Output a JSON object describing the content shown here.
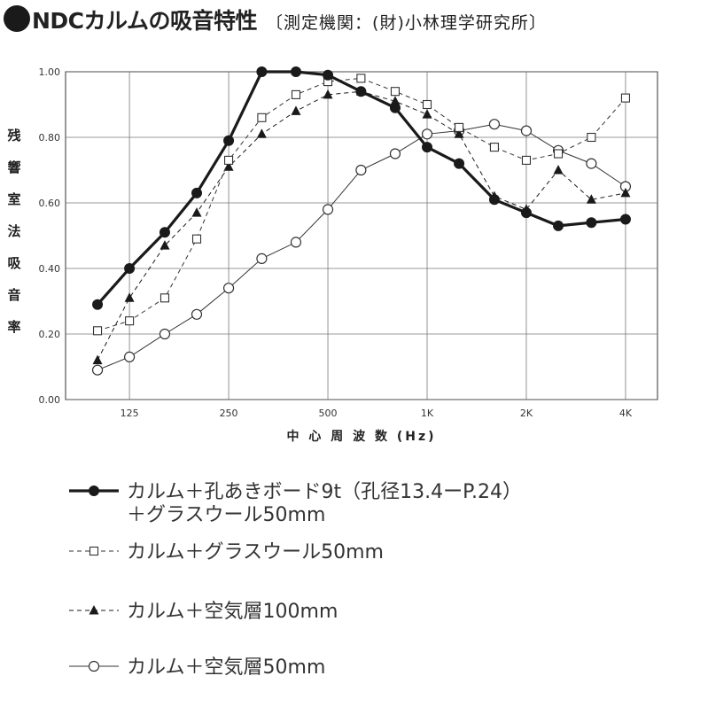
{
  "title": {
    "main": "NDCカルムの吸音特性",
    "sub": "〔測定機関：(財)小林理学研究所〕"
  },
  "chart_data": {
    "type": "line",
    "xlabel": "中 心 周 波 数 (Hz)",
    "ylabel": "残響室法吸音率",
    "x": [
      100,
      125,
      160,
      200,
      250,
      315,
      400,
      500,
      630,
      800,
      1000,
      1250,
      1600,
      2000,
      2500,
      3150,
      4000
    ],
    "x_ticks": [
      {
        "value": 125,
        "label": "125"
      },
      {
        "value": 250,
        "label": "250"
      },
      {
        "value": 500,
        "label": "500"
      },
      {
        "value": 1000,
        "label": "1K"
      },
      {
        "value": 2000,
        "label": "2K"
      },
      {
        "value": 4000,
        "label": "4K"
      }
    ],
    "x_scale": "log",
    "xlim": [
      80,
      5000
    ],
    "ylim": [
      0,
      1.0
    ],
    "y_ticks": [
      "0.00",
      "0.20",
      "0.40",
      "0.60",
      "0.80",
      "1.00"
    ],
    "grid": true,
    "series": [
      {
        "name": "カルム＋孔あきボード9t（孔径13.4ーP.24）＋グラスウール50mm",
        "marker": "filled-circle",
        "style": "solid-thick",
        "color": "#1a1a1a",
        "values": [
          0.29,
          0.4,
          0.51,
          0.63,
          0.79,
          1.0,
          1.0,
          0.99,
          0.94,
          0.89,
          0.77,
          0.72,
          0.61,
          0.57,
          0.53,
          0.54,
          0.55
        ]
      },
      {
        "name": "カルム＋グラスウール50mm",
        "marker": "open-square",
        "style": "dashed",
        "color": "#333333",
        "values": [
          0.21,
          0.24,
          0.31,
          0.49,
          0.73,
          0.86,
          0.93,
          0.97,
          0.98,
          0.94,
          0.9,
          0.83,
          0.77,
          0.73,
          0.75,
          0.8,
          0.92
        ]
      },
      {
        "name": "カルム＋空気層100mm",
        "marker": "filled-triangle",
        "style": "dashed",
        "color": "#1a1a1a",
        "values": [
          0.12,
          0.31,
          0.47,
          0.57,
          0.71,
          0.81,
          0.88,
          0.93,
          0.94,
          0.91,
          0.87,
          0.81,
          0.62,
          0.58,
          0.7,
          0.61,
          0.63
        ]
      },
      {
        "name": "カルム＋空気層50mm",
        "marker": "open-circle",
        "style": "solid-thin",
        "color": "#333333",
        "values": [
          0.09,
          0.13,
          0.2,
          0.26,
          0.34,
          0.43,
          0.48,
          0.58,
          0.7,
          0.75,
          0.81,
          0.82,
          0.84,
          0.82,
          0.76,
          0.72,
          0.65
        ]
      }
    ]
  },
  "legend": [
    {
      "line1": "カルム＋孔あきボード9t（孔径13.4ーP.24）",
      "line2": "＋グラスウール50mm"
    },
    {
      "line1": "カルム＋グラスウール50mm"
    },
    {
      "line1": "カルム＋空気層100mm"
    },
    {
      "line1": "カルム＋空気層50mm"
    }
  ]
}
